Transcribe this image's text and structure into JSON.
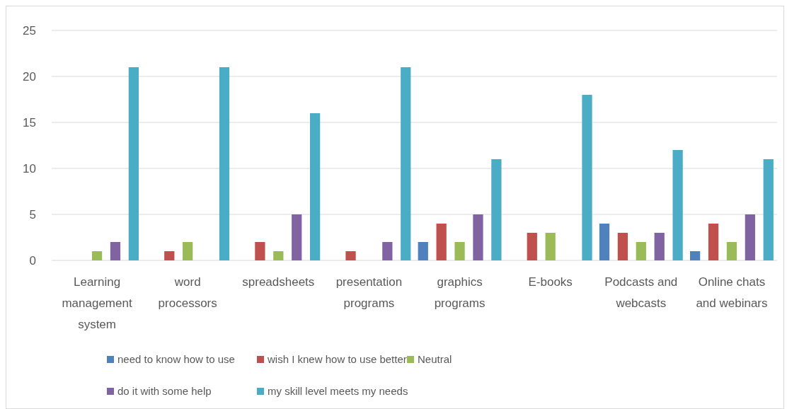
{
  "chart_data": {
    "type": "bar",
    "categories": [
      "Learning management system",
      "word processors",
      "spreadsheets",
      "presentation programs",
      "graphics programs",
      "E-books",
      "Podcasts and webcasts",
      "Online chats and webinars"
    ],
    "series": [
      {
        "name": "need to know how to use",
        "color": "#4f81bd",
        "values": [
          0,
          0,
          0,
          0,
          2,
          0,
          4,
          1
        ]
      },
      {
        "name": "wish I knew how to use better",
        "color": "#c0504d",
        "values": [
          0,
          1,
          2,
          1,
          4,
          3,
          3,
          4
        ]
      },
      {
        "name": "Neutral",
        "color": "#9bbb59",
        "values": [
          1,
          2,
          1,
          0,
          2,
          3,
          2,
          2
        ]
      },
      {
        "name": "do it with some help",
        "color": "#8064a2",
        "values": [
          2,
          0,
          5,
          2,
          5,
          0,
          3,
          5
        ]
      },
      {
        "name": "my skill level meets my needs",
        "color": "#4bacc6",
        "values": [
          21,
          21,
          16,
          21,
          11,
          18,
          12,
          11
        ]
      }
    ],
    "ylim": [
      0,
      25
    ],
    "yticks": [
      0,
      5,
      10,
      15,
      20,
      25
    ],
    "grid": "y",
    "legend": "bottom"
  }
}
